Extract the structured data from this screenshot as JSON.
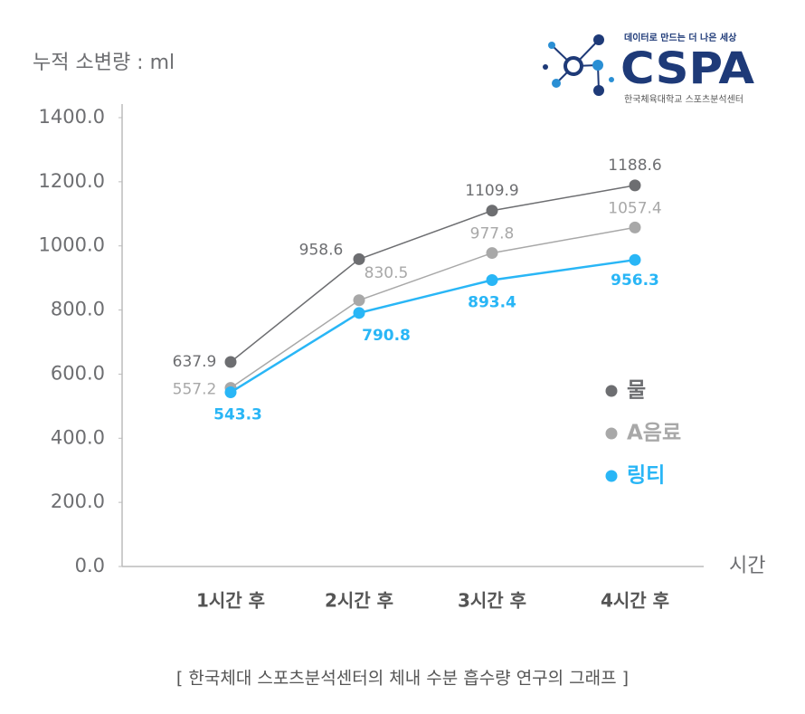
{
  "chart_data": {
    "type": "line",
    "y_axis_title": "누적 소변량 : ml",
    "x_axis_title": "시간",
    "categories": [
      "1시간 후",
      "2시간 후",
      "3시간 후",
      "4시간 후"
    ],
    "series": [
      {
        "name": "물",
        "color": "#6d6e71",
        "values": [
          637.9,
          958.6,
          1109.9,
          1188.6
        ]
      },
      {
        "name": "A음료",
        "color": "#a8a8a8",
        "values": [
          557.2,
          830.5,
          977.8,
          1057.4
        ]
      },
      {
        "name": "링티",
        "color": "#29b6f6",
        "values": [
          543.3,
          790.8,
          893.4,
          956.3
        ]
      }
    ],
    "ylim": [
      0,
      1400
    ],
    "yticks": [
      {
        "value": 0,
        "label": "0.0"
      },
      {
        "value": 200,
        "label": "200.0"
      },
      {
        "value": 400,
        "label": "400.0"
      },
      {
        "value": 600,
        "label": "600.0"
      },
      {
        "value": 800,
        "label": "800.0"
      },
      {
        "value": 1000,
        "label": "1000.0"
      },
      {
        "value": 1200,
        "label": "1200.0"
      },
      {
        "value": 1400,
        "label": "1400.0"
      }
    ],
    "legend": "right",
    "caption": "[ 한국체대 스포츠분석센터의 체내 수분 흡수량 연구의 그래프 ]"
  },
  "logo": {
    "slogan": "데이터로 만드는 더 나은 세상",
    "name": "CSPA",
    "subtitle": "한국체육대학교 스포츠분석센터"
  }
}
